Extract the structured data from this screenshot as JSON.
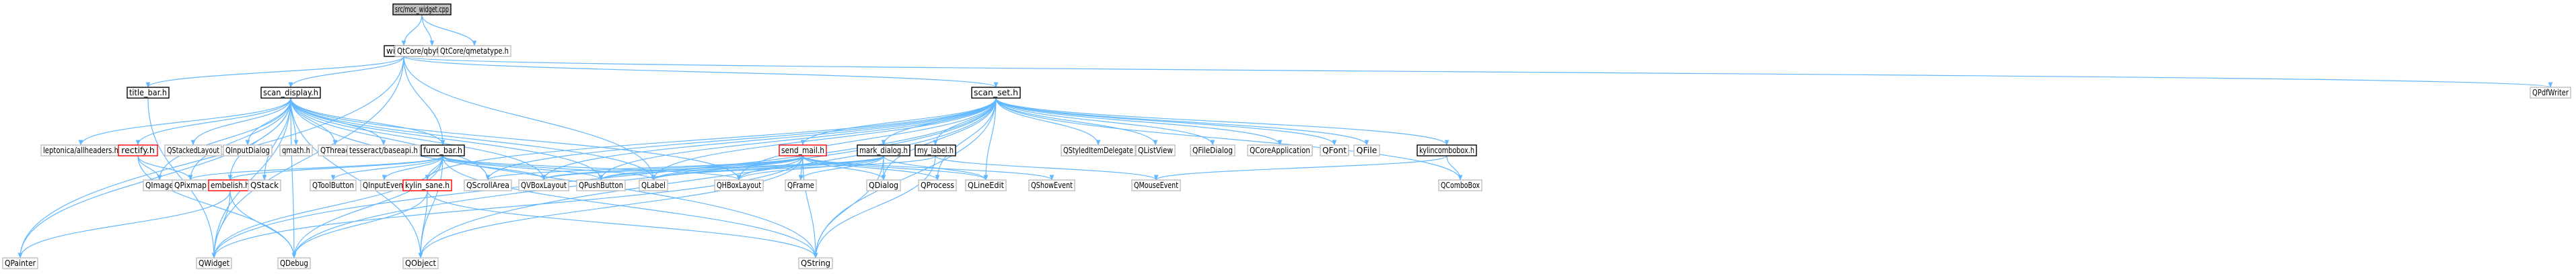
{
  "graph": {
    "edge_color": "#63b8ff",
    "root_fill": "#bfbfbf",
    "default_border": "#bfbfbf",
    "documented_border": "#000000",
    "undocumented_border": "#ff0000",
    "nodes": [
      {
        "id": "root",
        "label": "src/moc_widget.cpp",
        "kind": "root"
      },
      {
        "id": "widget",
        "label": "widget.h",
        "kind": "documented"
      },
      {
        "id": "qbytearray",
        "label": "QtCore/qbytearray.h",
        "kind": "default"
      },
      {
        "id": "qmetatype",
        "label": "QtCore/qmetatype.h",
        "kind": "default"
      },
      {
        "id": "titlebar",
        "label": "title_bar.h",
        "kind": "documented"
      },
      {
        "id": "scandisplay",
        "label": "scan_display.h",
        "kind": "documented"
      },
      {
        "id": "scanset",
        "label": "scan_set.h",
        "kind": "documented"
      },
      {
        "id": "qpdfwriter",
        "label": "QPdfWriter",
        "kind": "default"
      },
      {
        "id": "leptonica",
        "label": "leptonica/allheaders.h",
        "kind": "default"
      },
      {
        "id": "rectify",
        "label": "rectify.h",
        "kind": "undocumented"
      },
      {
        "id": "qstackedlayout",
        "label": "QStackedLayout",
        "kind": "default"
      },
      {
        "id": "qinputdialog",
        "label": "QInputDialog",
        "kind": "default"
      },
      {
        "id": "qmath",
        "label": "qmath.h",
        "kind": "default"
      },
      {
        "id": "qthread",
        "label": "QThread",
        "kind": "default"
      },
      {
        "id": "tesseract",
        "label": "tesseract/baseapi.h",
        "kind": "default"
      },
      {
        "id": "funcbar",
        "label": "func_bar.h",
        "kind": "documented"
      },
      {
        "id": "sendmail",
        "label": "send_mail.h",
        "kind": "undocumented"
      },
      {
        "id": "markdialog",
        "label": "mark_dialog.h",
        "kind": "documented"
      },
      {
        "id": "mylabel",
        "label": "my_label.h",
        "kind": "documented"
      },
      {
        "id": "qstyleddelegate",
        "label": "QStyledItemDelegate",
        "kind": "default"
      },
      {
        "id": "qlistview",
        "label": "QListView",
        "kind": "default"
      },
      {
        "id": "qfiledialog",
        "label": "QFileDialog",
        "kind": "default"
      },
      {
        "id": "qcoreapplication",
        "label": "QCoreApplication",
        "kind": "default"
      },
      {
        "id": "qfont",
        "label": "QFont",
        "kind": "default"
      },
      {
        "id": "qfile",
        "label": "QFile",
        "kind": "default"
      },
      {
        "id": "kylincombobox",
        "label": "kylincombobox.h",
        "kind": "documented"
      },
      {
        "id": "qimage",
        "label": "QImage",
        "kind": "default"
      },
      {
        "id": "qpixmap",
        "label": "QPixmap",
        "kind": "default"
      },
      {
        "id": "embelish",
        "label": "embelish.h",
        "kind": "undocumented"
      },
      {
        "id": "qstack",
        "label": "QStack",
        "kind": "default"
      },
      {
        "id": "qtoolbutton",
        "label": "QToolButton",
        "kind": "default"
      },
      {
        "id": "qinputevent",
        "label": "QInputEvent",
        "kind": "default"
      },
      {
        "id": "kylinsane",
        "label": "kylin_sane.h",
        "kind": "undocumented"
      },
      {
        "id": "qscrollarea",
        "label": "QScrollArea",
        "kind": "default"
      },
      {
        "id": "qvboxlayout",
        "label": "QVBoxLayout",
        "kind": "default"
      },
      {
        "id": "qpushbutton",
        "label": "QPushButton",
        "kind": "default"
      },
      {
        "id": "qlabel",
        "label": "QLabel",
        "kind": "default"
      },
      {
        "id": "qhboxlayout",
        "label": "QHBoxLayout",
        "kind": "default"
      },
      {
        "id": "qframe",
        "label": "QFrame",
        "kind": "default"
      },
      {
        "id": "qdialog",
        "label": "QDialog",
        "kind": "default"
      },
      {
        "id": "qprocess",
        "label": "QProcess",
        "kind": "default"
      },
      {
        "id": "qlineedit",
        "label": "QLineEdit",
        "kind": "default"
      },
      {
        "id": "qshowevent",
        "label": "QShowEvent",
        "kind": "default"
      },
      {
        "id": "qmouseevent",
        "label": "QMouseEvent",
        "kind": "default"
      },
      {
        "id": "qcombobox",
        "label": "QComboBox",
        "kind": "default"
      },
      {
        "id": "qpainter",
        "label": "QPainter",
        "kind": "default"
      },
      {
        "id": "qwidget",
        "label": "QWidget",
        "kind": "default"
      },
      {
        "id": "qdebug",
        "label": "QDebug",
        "kind": "default"
      },
      {
        "id": "qobject",
        "label": "QObject",
        "kind": "default"
      },
      {
        "id": "qstring",
        "label": "QString",
        "kind": "default"
      }
    ],
    "edges": [
      [
        "root",
        "widget"
      ],
      [
        "root",
        "qbytearray"
      ],
      [
        "root",
        "qmetatype"
      ],
      [
        "widget",
        "titlebar"
      ],
      [
        "widget",
        "scandisplay"
      ],
      [
        "widget",
        "scanset"
      ],
      [
        "widget",
        "qpdfwriter"
      ],
      [
        "widget",
        "funcbar"
      ],
      [
        "widget",
        "qpainter"
      ],
      [
        "widget",
        "qwidget"
      ],
      [
        "widget",
        "qlabel"
      ],
      [
        "titlebar",
        "qwidget"
      ],
      [
        "scandisplay",
        "leptonica"
      ],
      [
        "scandisplay",
        "rectify"
      ],
      [
        "scandisplay",
        "qstackedlayout"
      ],
      [
        "scandisplay",
        "qinputdialog"
      ],
      [
        "scandisplay",
        "qmath"
      ],
      [
        "scandisplay",
        "qthread"
      ],
      [
        "scandisplay",
        "tesseract"
      ],
      [
        "scandisplay",
        "funcbar"
      ],
      [
        "scandisplay",
        "qimage"
      ],
      [
        "scandisplay",
        "qpixmap"
      ],
      [
        "scandisplay",
        "embelish"
      ],
      [
        "scandisplay",
        "qstack"
      ],
      [
        "scandisplay",
        "qscrollarea"
      ],
      [
        "scandisplay",
        "qvboxlayout"
      ],
      [
        "scandisplay",
        "qpushbutton"
      ],
      [
        "scandisplay",
        "qlabel"
      ],
      [
        "scandisplay",
        "qhboxlayout"
      ],
      [
        "scandisplay",
        "qwidget"
      ],
      [
        "scandisplay",
        "qdebug"
      ],
      [
        "scandisplay",
        "qobject"
      ],
      [
        "scandisplay",
        "qstring"
      ],
      [
        "scandisplay",
        "qpainter"
      ],
      [
        "rectify",
        "qimage"
      ],
      [
        "rectify",
        "qpixmap"
      ],
      [
        "rectify",
        "qdebug"
      ],
      [
        "funcbar",
        "qtoolbutton"
      ],
      [
        "funcbar",
        "qinputevent"
      ],
      [
        "funcbar",
        "kylinsane"
      ],
      [
        "funcbar",
        "qvboxlayout"
      ],
      [
        "funcbar",
        "qpushbutton"
      ],
      [
        "funcbar",
        "qlabel"
      ],
      [
        "funcbar",
        "qhboxlayout"
      ],
      [
        "funcbar",
        "qwidget"
      ],
      [
        "funcbar",
        "qdebug"
      ],
      [
        "funcbar",
        "qobject"
      ],
      [
        "funcbar",
        "qstring"
      ],
      [
        "funcbar",
        "qpixmap"
      ],
      [
        "funcbar",
        "embelish"
      ],
      [
        "embelish",
        "qwidget"
      ],
      [
        "embelish",
        "qdebug"
      ],
      [
        "embelish",
        "qpainter"
      ],
      [
        "kylinsane",
        "qdebug"
      ],
      [
        "kylinsane",
        "qobject"
      ],
      [
        "kylinsane",
        "qstring"
      ],
      [
        "scanset",
        "sendmail"
      ],
      [
        "scanset",
        "markdialog"
      ],
      [
        "scanset",
        "mylabel"
      ],
      [
        "scanset",
        "qstyleddelegate"
      ],
      [
        "scanset",
        "qlistview"
      ],
      [
        "scanset",
        "qfiledialog"
      ],
      [
        "scanset",
        "qcoreapplication"
      ],
      [
        "scanset",
        "qfont"
      ],
      [
        "scanset",
        "qfile"
      ],
      [
        "scanset",
        "kylincombobox"
      ],
      [
        "scanset",
        "kylinsane"
      ],
      [
        "scanset",
        "qpushbutton"
      ],
      [
        "scanset",
        "qlabel"
      ],
      [
        "scanset",
        "qhboxlayout"
      ],
      [
        "scanset",
        "qvboxlayout"
      ],
      [
        "scanset",
        "qlineedit"
      ],
      [
        "scanset",
        "qdialog"
      ],
      [
        "scanset",
        "qprocess"
      ],
      [
        "scanset",
        "qwidget"
      ],
      [
        "scanset",
        "qobject"
      ],
      [
        "scanset",
        "qstring"
      ],
      [
        "scanset",
        "qdebug"
      ],
      [
        "scanset",
        "qcombobox"
      ],
      [
        "scanset",
        "qscrollarea"
      ],
      [
        "sendmail",
        "qscrollarea"
      ],
      [
        "sendmail",
        "qvboxlayout"
      ],
      [
        "sendmail",
        "qpushbutton"
      ],
      [
        "sendmail",
        "qlabel"
      ],
      [
        "sendmail",
        "qhboxlayout"
      ],
      [
        "sendmail",
        "qframe"
      ],
      [
        "sendmail",
        "qdialog"
      ],
      [
        "sendmail",
        "qprocess"
      ],
      [
        "sendmail",
        "qlineedit"
      ],
      [
        "sendmail",
        "qshowevent"
      ],
      [
        "sendmail",
        "qstring"
      ],
      [
        "sendmail",
        "qobject"
      ],
      [
        "sendmail",
        "qwidget"
      ],
      [
        "markdialog",
        "qvboxlayout"
      ],
      [
        "markdialog",
        "qpushbutton"
      ],
      [
        "markdialog",
        "qlabel"
      ],
      [
        "markdialog",
        "qhboxlayout"
      ],
      [
        "markdialog",
        "qframe"
      ],
      [
        "markdialog",
        "qdialog"
      ],
      [
        "markdialog",
        "qlineedit"
      ],
      [
        "markdialog",
        "qstring"
      ],
      [
        "mylabel",
        "qlabel"
      ],
      [
        "mylabel",
        "qmouseevent"
      ],
      [
        "mylabel",
        "qstring"
      ],
      [
        "kylincombobox",
        "qmouseevent"
      ],
      [
        "kylincombobox",
        "qcombobox"
      ]
    ]
  }
}
